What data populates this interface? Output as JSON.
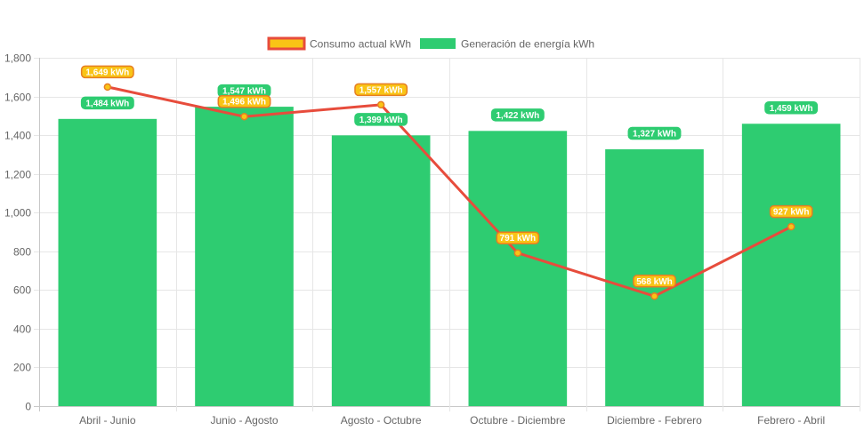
{
  "chart_data": {
    "type": "bar",
    "categories": [
      "Abril - Junio",
      "Junio - Agosto",
      "Agosto - Octubre",
      "Octubre - Diciembre",
      "Diciembre - Febrero",
      "Febrero - Abril"
    ],
    "series": [
      {
        "name": "Consumo actual kWh",
        "type": "line",
        "values": [
          1649,
          1496,
          1557,
          791,
          568,
          927
        ],
        "labels": [
          "1,649 kWh",
          "1,496 kWh",
          "1,557 kWh",
          "791 kWh",
          "568 kWh",
          "927 kWh"
        ],
        "color": "#e74c3c",
        "fill_color": "#f9c416"
      },
      {
        "name": "Generación de energía kWh",
        "type": "bar",
        "values": [
          1484,
          1547,
          1399,
          1422,
          1327,
          1459
        ],
        "labels": [
          "1,484 kWh",
          "1,547 kWh",
          "1,399 kWh",
          "1,422 kWh",
          "1,327 kWh",
          "1,459 kWh"
        ],
        "color": "#2ecc71"
      }
    ],
    "ylim": [
      0,
      1800
    ],
    "yticks": [
      "0",
      "200",
      "400",
      "600",
      "800",
      "1,000",
      "1,200",
      "1,400",
      "1,600",
      "1,800"
    ],
    "grid": true,
    "legend": "top-center"
  }
}
